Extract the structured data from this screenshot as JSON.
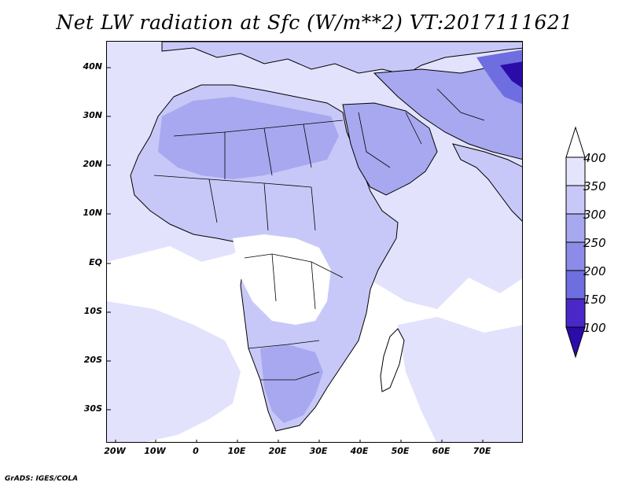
{
  "title": "Net LW radiation at Sfc (W/m**2) VT:2017111621",
  "credit": "GrADS: IGES/COLA",
  "map": {
    "lon_range": [
      -22,
      80
    ],
    "lat_range": [
      -37,
      45
    ],
    "y_ticks": [
      "40N",
      "30N",
      "20N",
      "10N",
      "EQ",
      "10S",
      "20S",
      "30S"
    ],
    "x_ticks": [
      "20W",
      "10W",
      "0",
      "10E",
      "20E",
      "30E",
      "40E",
      "50E",
      "60E",
      "70E"
    ],
    "ocean_color": "#ffffff",
    "land_color": "#d4d4fc",
    "shade_colors": [
      "#ffffff",
      "#e2e2fd",
      "#c8c8f8",
      "#a8a8f0",
      "#8c8ce8",
      "#6e6ee0",
      "#4a28c8",
      "#2c0ca8"
    ]
  },
  "colorbar": {
    "labels": [
      "400",
      "350",
      "300",
      "250",
      "200",
      "150",
      "100"
    ],
    "colors": [
      "#ffffff",
      "#e4e4fd",
      "#c8c8f8",
      "#a8a8f0",
      "#8c8ce8",
      "#6e6ee0",
      "#4a28c8",
      "#2c0ca8"
    ]
  }
}
